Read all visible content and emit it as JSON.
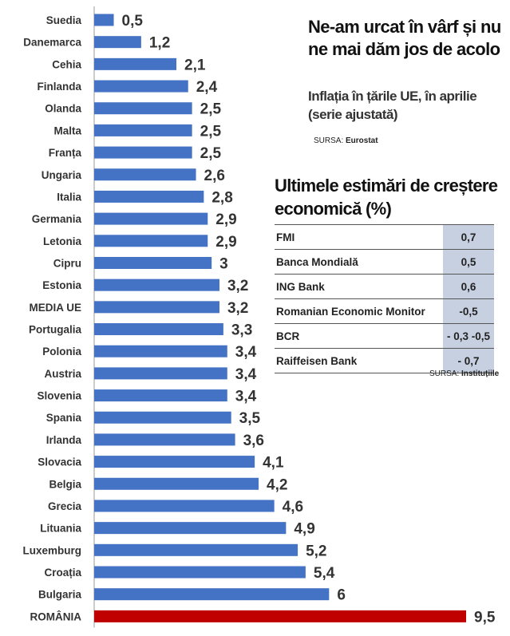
{
  "chart_data": {
    "type": "bar",
    "orientation": "horizontal",
    "categories": [
      "Suedia",
      "Danemarca",
      "Cehia",
      "Finlanda",
      "Olanda",
      "Malta",
      "Franța",
      "Ungaria",
      "Italia",
      "Germania",
      "Letonia",
      "Cipru",
      "Estonia",
      "MEDIA UE",
      "Portugalia",
      "Polonia",
      "Austria",
      "Slovenia",
      "Spania",
      "Irlanda",
      "Slovacia",
      "Belgia",
      "Grecia",
      "Lituania",
      "Luxemburg",
      "Croația",
      "Bulgaria",
      "ROMÂNIA"
    ],
    "values": [
      0.5,
      1.2,
      2.1,
      2.4,
      2.5,
      2.5,
      2.5,
      2.6,
      2.8,
      2.9,
      2.9,
      3,
      3.2,
      3.2,
      3.3,
      3.4,
      3.4,
      3.4,
      3.5,
      3.6,
      4.1,
      4.2,
      4.6,
      4.9,
      5.2,
      5.4,
      6,
      9.5
    ],
    "value_labels": [
      "0,5",
      "1,2",
      "2,1",
      "2,4",
      "2,5",
      "2,5",
      "2,5",
      "2,6",
      "2,8",
      "2,9",
      "2,9",
      "3",
      "3,2",
      "3,2",
      "3,3",
      "3,4",
      "3,4",
      "3,4",
      "3,5",
      "3,6",
      "4,1",
      "4,2",
      "4,6",
      "4,9",
      "5,2",
      "5,4",
      "6",
      "9,5"
    ],
    "bar_color": "#4472c4",
    "highlight_color": "#c00000",
    "highlight_category": "ROMÂNIA",
    "title": "Ne-am urcat în vârf și nu ne mai dăm jos de acolo",
    "subtitle": "Inflația în țările UE, în aprilie (serie ajustată)",
    "xlim": [
      0,
      9.5
    ],
    "grid": false
  },
  "source_chart": {
    "label": "SURSA: ",
    "value": "Eurostat"
  },
  "growth_table": {
    "title": "Ultimele estimări de creștere economică (%)",
    "rows": [
      {
        "name": "FMI",
        "value": "0,7"
      },
      {
        "name": "Banca Mondială",
        "value": "0,5"
      },
      {
        "name": "ING Bank",
        "value": "0,6"
      },
      {
        "name": "Romanian Economic Monitor",
        "value": "-0,5"
      },
      {
        "name": "BCR",
        "value": "- 0,3 -0,5"
      },
      {
        "name": "Raiffeisen Bank",
        "value": "- 0,7"
      }
    ],
    "value_bg_color": "#c7d0e0"
  },
  "source_table": {
    "label": "SURSA: ",
    "value": "Instituțiile"
  }
}
